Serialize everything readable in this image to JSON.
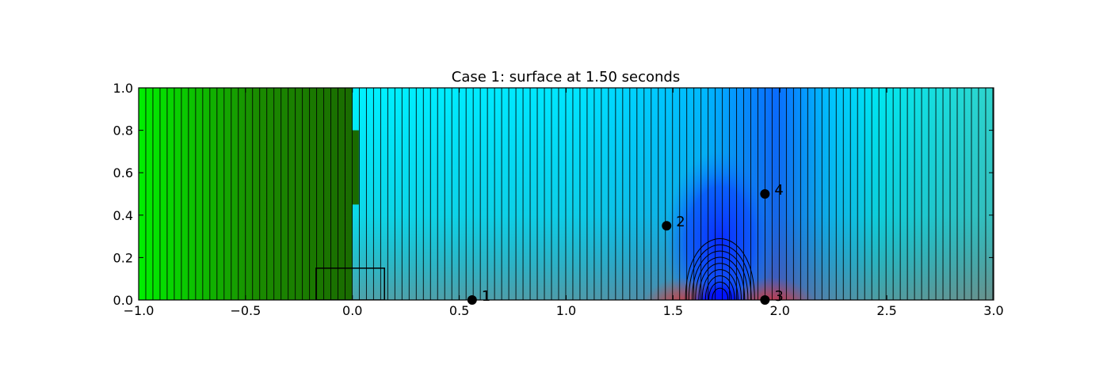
{
  "chart_data": {
    "type": "heatmap",
    "title": "Case 1: surface at 1.50 seconds",
    "xlabel": "",
    "ylabel": "",
    "xlim": [
      -1.0,
      3.0
    ],
    "ylim": [
      0.0,
      1.0
    ],
    "xticks": [
      -1.0,
      -0.5,
      0.0,
      0.5,
      1.0,
      1.5,
      2.0,
      2.5,
      3.0
    ],
    "xtick_labels": [
      "−1.0",
      "−0.5",
      "0.0",
      "0.5",
      "1.0",
      "1.5",
      "2.0",
      "2.5",
      "3.0"
    ],
    "yticks": [
      0.0,
      0.2,
      0.4,
      0.6,
      0.8,
      1.0
    ],
    "ytick_labels": [
      "0.0",
      "0.2",
      "0.4",
      "0.6",
      "0.8",
      "1.0"
    ],
    "grid": false,
    "colors": {
      "land_green_bright": "#00f000",
      "land_green_dark": "#1a6b00",
      "water_cyan": "#00f0ff",
      "water_blue": "#0044ff",
      "deep_blue": "#0000ff",
      "positive_red": "#ff2222",
      "contour": "#000000"
    },
    "gauges": [
      {
        "label": "1",
        "x": 0.56,
        "y": 0.0
      },
      {
        "label": "2",
        "x": 1.47,
        "y": 0.35
      },
      {
        "label": "3",
        "x": 1.93,
        "y": 0.0
      },
      {
        "label": "4",
        "x": 1.93,
        "y": 0.5
      }
    ],
    "box_region": {
      "x": [
        -0.17,
        0.15
      ],
      "y": [
        0.0,
        0.15
      ]
    },
    "dark_strip": {
      "x": [
        0.0,
        0.03
      ],
      "y": [
        0.45,
        0.8
      ]
    },
    "shoreline_x": 0.0,
    "depression_center": {
      "x": 1.72,
      "y": 0.02
    },
    "grid_lines_x_spacing": 0.0333
  }
}
